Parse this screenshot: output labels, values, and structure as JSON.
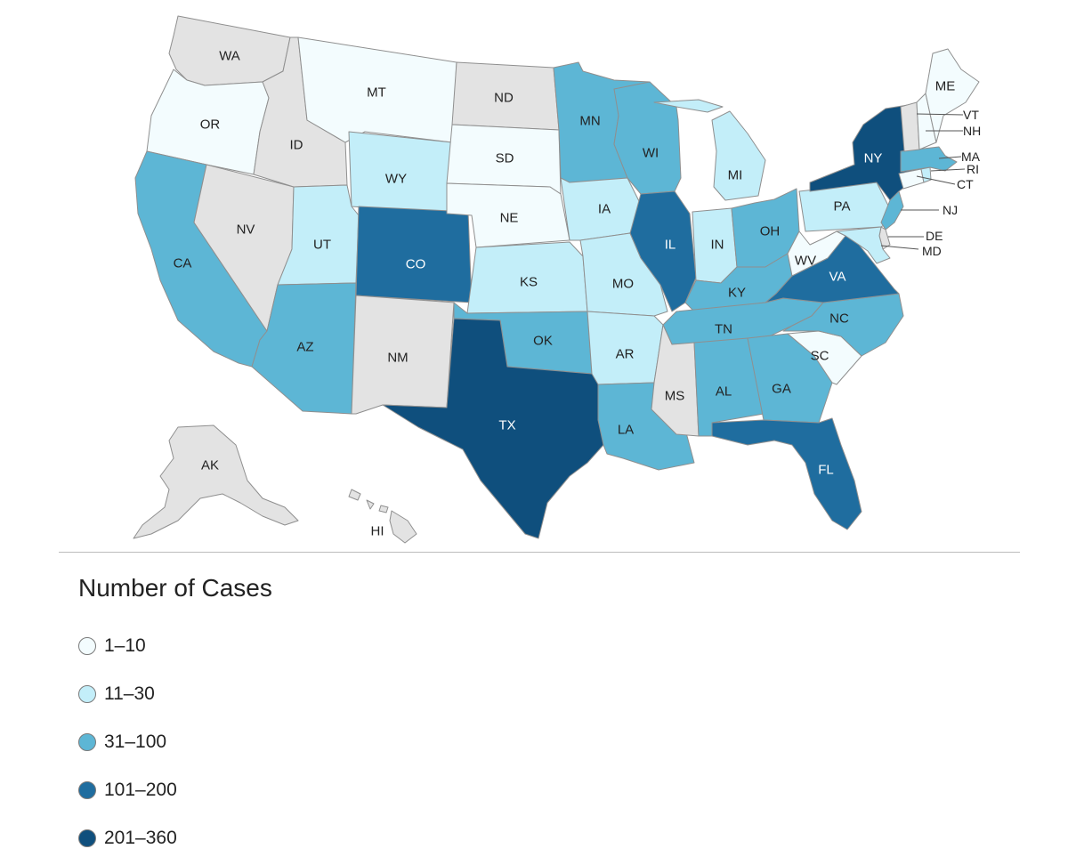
{
  "legend": {
    "title": "Number of Cases",
    "items": [
      {
        "label": "1–10",
        "color": "#f3fcfe"
      },
      {
        "label": "11–30",
        "color": "#c3eef9"
      },
      {
        "label": "31–100",
        "color": "#5db6d5"
      },
      {
        "label": "101–200",
        "color": "#1f6d9f"
      },
      {
        "label": "201–360",
        "color": "#0f4f7d"
      }
    ]
  },
  "no_data_color": "#e3e3e3",
  "states": [
    {
      "abbr": "WA",
      "class": null
    },
    {
      "abbr": "OR",
      "class": 0
    },
    {
      "abbr": "CA",
      "class": 2
    },
    {
      "abbr": "NV",
      "class": null
    },
    {
      "abbr": "ID",
      "class": null
    },
    {
      "abbr": "MT",
      "class": 0
    },
    {
      "abbr": "WY",
      "class": 1
    },
    {
      "abbr": "UT",
      "class": 1
    },
    {
      "abbr": "AZ",
      "class": 2
    },
    {
      "abbr": "CO",
      "class": 3
    },
    {
      "abbr": "NM",
      "class": null
    },
    {
      "abbr": "ND",
      "class": null
    },
    {
      "abbr": "SD",
      "class": 0
    },
    {
      "abbr": "NE",
      "class": 0
    },
    {
      "abbr": "KS",
      "class": 1
    },
    {
      "abbr": "OK",
      "class": 2
    },
    {
      "abbr": "TX",
      "class": 4
    },
    {
      "abbr": "MN",
      "class": 2
    },
    {
      "abbr": "IA",
      "class": 1
    },
    {
      "abbr": "MO",
      "class": 1
    },
    {
      "abbr": "AR",
      "class": 1
    },
    {
      "abbr": "LA",
      "class": 2
    },
    {
      "abbr": "WI",
      "class": 2
    },
    {
      "abbr": "IL",
      "class": 3
    },
    {
      "abbr": "MI",
      "class": 1
    },
    {
      "abbr": "IN",
      "class": 1
    },
    {
      "abbr": "OH",
      "class": 2
    },
    {
      "abbr": "KY",
      "class": 2
    },
    {
      "abbr": "TN",
      "class": 2
    },
    {
      "abbr": "MS",
      "class": null
    },
    {
      "abbr": "AL",
      "class": 2
    },
    {
      "abbr": "GA",
      "class": 2
    },
    {
      "abbr": "FL",
      "class": 3
    },
    {
      "abbr": "SC",
      "class": 0
    },
    {
      "abbr": "NC",
      "class": 2
    },
    {
      "abbr": "VA",
      "class": 3
    },
    {
      "abbr": "WV",
      "class": 0
    },
    {
      "abbr": "PA",
      "class": 1
    },
    {
      "abbr": "NY",
      "class": 4
    },
    {
      "abbr": "NJ",
      "class": 2
    },
    {
      "abbr": "DE",
      "class": null
    },
    {
      "abbr": "MD",
      "class": 1
    },
    {
      "abbr": "CT",
      "class": 0
    },
    {
      "abbr": "RI",
      "class": 1
    },
    {
      "abbr": "MA",
      "class": 2
    },
    {
      "abbr": "VT",
      "class": null
    },
    {
      "abbr": "NH",
      "class": 0
    },
    {
      "abbr": "ME",
      "class": 0
    },
    {
      "abbr": "AK",
      "class": null
    },
    {
      "abbr": "HI",
      "class": null
    }
  ]
}
